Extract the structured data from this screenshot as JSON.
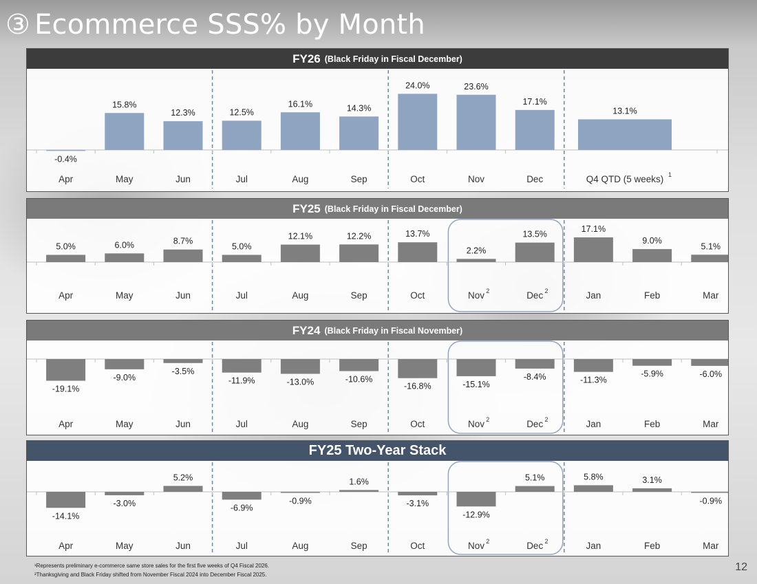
{
  "page": {
    "title_number": "③",
    "title": "Ecommerce SSS% by Month",
    "page_number": "12",
    "footnotes": [
      "¹Represents preliminary e-commerce same store sales for the first five weeks of Q4 Fiscal 2026.",
      "²Thanksgiving and Black Friday shifted from November Fiscal 2024 into December Fiscal 2025."
    ]
  },
  "colors": {
    "fy26_header": "#3c3c3c",
    "fy25_header": "#7a7a7a",
    "fy24_header": "#7a7a7a",
    "stack_header": "#44546a",
    "fy26_bar": "#8ea4c0",
    "gray_bar": "#7f7f7f",
    "divider": "#6a86b0",
    "highlight_box": "#8fa3c4"
  },
  "chart_data": [
    {
      "type": "bar",
      "title": "FY26",
      "subtitle": "(Black Friday in Fiscal December)",
      "categories": [
        "Apr",
        "May",
        "Jun",
        "Jul",
        "Aug",
        "Sep",
        "Oct",
        "Nov",
        "Dec",
        "Q4 QTD (5 weeks)"
      ],
      "category_superscripts": [
        "",
        "",
        "",
        "",
        "",
        "",
        "",
        "",
        "",
        "1"
      ],
      "values": [
        -0.4,
        15.8,
        12.3,
        12.5,
        16.1,
        14.3,
        24.0,
        23.6,
        17.1,
        13.1
      ],
      "labels": [
        "-0.4%",
        "15.8%",
        "12.3%",
        "12.5%",
        "16.1%",
        "14.3%",
        "24.0%",
        "23.6%",
        "17.1%",
        "13.1%"
      ],
      "units": "%",
      "highlight": []
    },
    {
      "type": "bar",
      "title": "FY25",
      "subtitle": "(Black Friday in Fiscal December)",
      "categories": [
        "Apr",
        "May",
        "Jun",
        "Jul",
        "Aug",
        "Sep",
        "Oct",
        "Nov",
        "Dec",
        "Jan",
        "Feb",
        "Mar"
      ],
      "category_superscripts": [
        "",
        "",
        "",
        "",
        "",
        "",
        "",
        "2",
        "2",
        "",
        "",
        ""
      ],
      "values": [
        5.0,
        6.0,
        8.7,
        5.0,
        12.1,
        12.2,
        13.7,
        2.2,
        13.5,
        17.1,
        9.0,
        5.1
      ],
      "labels": [
        "5.0%",
        "6.0%",
        "8.7%",
        "5.0%",
        "12.1%",
        "12.2%",
        "13.7%",
        "2.2%",
        "13.5%",
        "17.1%",
        "9.0%",
        "5.1%"
      ],
      "units": "%",
      "highlight": [
        "Nov",
        "Dec"
      ]
    },
    {
      "type": "bar",
      "title": "FY24",
      "subtitle": "(Black Friday in Fiscal November)",
      "categories": [
        "Apr",
        "May",
        "Jun",
        "Jul",
        "Aug",
        "Sep",
        "Oct",
        "Nov",
        "Dec",
        "Jan",
        "Feb",
        "Mar"
      ],
      "category_superscripts": [
        "",
        "",
        "",
        "",
        "",
        "",
        "",
        "2",
        "2",
        "",
        "",
        ""
      ],
      "values": [
        -19.1,
        -9.0,
        -3.5,
        -11.9,
        -13.0,
        -10.6,
        -16.8,
        -15.1,
        -8.4,
        -11.3,
        -5.9,
        -6.0
      ],
      "labels": [
        "-19.1%",
        "-9.0%",
        "-3.5%",
        "-11.9%",
        "-13.0%",
        "-10.6%",
        "-16.8%",
        "-15.1%",
        "-8.4%",
        "-11.3%",
        "-5.9%",
        "-6.0%"
      ],
      "units": "%",
      "highlight": [
        "Nov",
        "Dec"
      ]
    },
    {
      "type": "bar",
      "title": "FY25 Two-Year Stack",
      "subtitle": "",
      "categories": [
        "Apr",
        "May",
        "Jun",
        "Jul",
        "Aug",
        "Sep",
        "Oct",
        "Nov",
        "Dec",
        "Jan",
        "Feb",
        "Mar"
      ],
      "category_superscripts": [
        "",
        "",
        "",
        "",
        "",
        "",
        "",
        "2",
        "2",
        "",
        "",
        ""
      ],
      "values": [
        -14.1,
        -3.0,
        5.2,
        -6.9,
        -0.9,
        1.6,
        -3.1,
        -12.9,
        5.1,
        5.8,
        3.1,
        -0.9
      ],
      "labels": [
        "-14.1%",
        "-3.0%",
        "5.2%",
        "-6.9%",
        "-0.9%",
        "1.6%",
        "-3.1%",
        "-12.9%",
        "5.1%",
        "5.8%",
        "3.1%",
        "-0.9%"
      ],
      "units": "%",
      "highlight": [
        "Nov",
        "Dec"
      ]
    }
  ]
}
